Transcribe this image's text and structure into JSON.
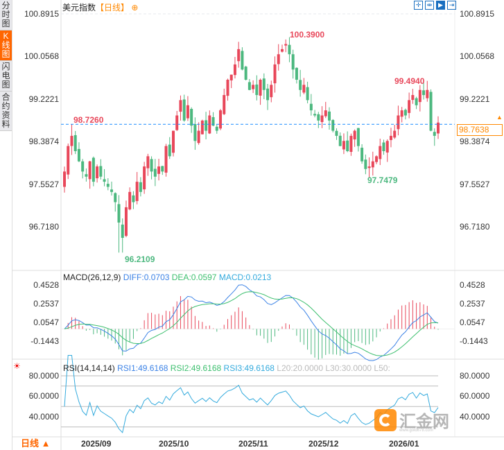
{
  "sidebar": {
    "tabs": [
      {
        "label": "分时图"
      },
      {
        "label": "K线图",
        "active": true
      },
      {
        "label": "闪电图"
      },
      {
        "label": "合约资料"
      }
    ]
  },
  "header": {
    "title": "美元指数",
    "period": "【日线】",
    "add_icon": "circle-plus-icon"
  },
  "toolbar": {
    "icons": [
      "crosshair-icon",
      "range-icon",
      "play-icon",
      "jump-end-icon"
    ]
  },
  "price_axis": {
    "ticks": [
      "100.8915",
      "100.0568",
      "99.2221",
      "98.3874",
      "97.5527",
      "96.7180"
    ],
    "current": "98.7638"
  },
  "annotations": {
    "high": "100.3900",
    "high2": "99.4940",
    "low": "96.2109",
    "low2": "97.7479",
    "prev": "98.7260"
  },
  "macd": {
    "title": "MACD(26,12,9)",
    "diff": "DIFF:0.0703",
    "dea": "DEA:0.0597",
    "macd": "MACD:0.0213",
    "ticks": [
      "0.4528",
      "0.2537",
      "0.0547",
      "-0.1443"
    ]
  },
  "rsi": {
    "title": "RSI(14,14,14)",
    "rsi1": "RSI1:49.6168",
    "rsi2": "RSI2:49.6168",
    "rsi3": "RSI3:49.6168",
    "l20": "L20:20.0000",
    "l30": "L30:30.0000",
    "l50": "L50:",
    "ticks": [
      "80.0000",
      "60.0000",
      "40.0000"
    ]
  },
  "xaxis": {
    "ticks": [
      "2025/09",
      "2025/10",
      "2025/11",
      "2025/12",
      "2026/01"
    ]
  },
  "period_button": "日线 ▲",
  "watermark": {
    "text": "汇金网",
    "url": "www.gold678.com"
  },
  "colors": {
    "up": "#e8475a",
    "down": "#4cb87f",
    "accent": "#ff6600",
    "diff": "#3b82e6",
    "dea": "#3cbf6e",
    "rsi": "#33aadd"
  },
  "chart_data": {
    "type": "candlestick",
    "closes": [
      97.8,
      98.3,
      98.5,
      98.2,
      98.0,
      97.8,
      97.7,
      98.0,
      97.6,
      97.9,
      97.7,
      97.6,
      97.5,
      97.4,
      97.2,
      96.8,
      96.5,
      97.1,
      97.4,
      97.2,
      97.6,
      97.4,
      97.9,
      98.1,
      97.8,
      97.7,
      97.9,
      97.8,
      98.3,
      98.1,
      98.6,
      98.9,
      99.2,
      98.8,
      99.1,
      98.7,
      98.4,
      98.6,
      98.8,
      98.6,
      98.9,
      98.7,
      98.6,
      99.0,
      99.3,
      99.6,
      99.7,
      99.9,
      100.2,
      99.8,
      99.6,
      99.4,
      99.5,
      99.3,
      99.6,
      99.4,
      99.2,
      99.5,
      99.9,
      100.1,
      100.2,
      100.3,
      100.1,
      99.8,
      99.6,
      99.4,
      99.5,
      99.2,
      99.0,
      98.9,
      98.8,
      98.9,
      99.0,
      98.8,
      98.6,
      98.5,
      98.3,
      98.4,
      98.2,
      98.5,
      98.6,
      98.3,
      98.0,
      97.85,
      97.9,
      98.0,
      98.1,
      98.3,
      98.2,
      98.4,
      98.5,
      98.6,
      98.9,
      99.0,
      98.9,
      99.2,
      99.3,
      99.1,
      99.4,
      99.3,
      99.4,
      98.6,
      98.5,
      98.76
    ],
    "ylim": [
      96.718,
      100.8915
    ]
  }
}
